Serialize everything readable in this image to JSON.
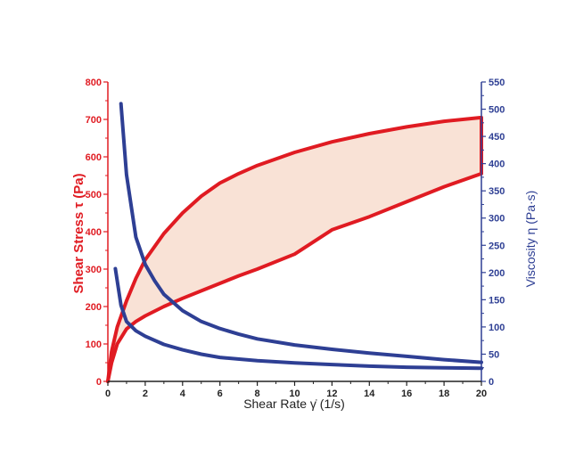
{
  "colors": {
    "stress": "#e01b22",
    "viscosity": "#2e3f94",
    "band_fill": "#f9e2d6",
    "x_axis": "#222222"
  },
  "chart_data": {
    "type": "line",
    "title": "",
    "xlabel": "Shear Rate γ̇ (1/s)",
    "ylabel": "Shear  Stress τ (Pa)",
    "y2label": "Viscosity η (Pa·s)",
    "xlim": [
      0,
      20
    ],
    "ylim": [
      0,
      800
    ],
    "y2lim": [
      0,
      550
    ],
    "x_ticks": [
      "0",
      "2",
      "4",
      "6",
      "8",
      "10",
      "12",
      "14",
      "16",
      "18",
      "20"
    ],
    "y_ticks": [
      "0",
      "100",
      "200",
      "300",
      "400",
      "500",
      "600",
      "700",
      "800"
    ],
    "y2_ticks": [
      "0",
      "50",
      "100",
      "150",
      "200",
      "250",
      "300",
      "350",
      "400",
      "450",
      "500",
      "550"
    ],
    "grid": false,
    "shaded_band": "between the two shear stress curves",
    "series": [
      {
        "axis": "left",
        "color": "#e01b22",
        "x": [
          0,
          0.2,
          0.5,
          1,
          1.5,
          2,
          3,
          4,
          5,
          6,
          7,
          8,
          10,
          12,
          14,
          16,
          18,
          20
        ],
        "values": [
          0,
          80,
          145,
          215,
          275,
          325,
          395,
          450,
          495,
          530,
          555,
          577,
          612,
          640,
          662,
          680,
          695,
          705
        ]
      },
      {
        "axis": "left",
        "color": "#e01b22",
        "x": [
          0,
          0.2,
          0.5,
          1,
          1.5,
          2,
          3,
          4,
          5,
          6,
          7,
          8,
          10,
          12,
          14,
          16,
          18,
          20
        ],
        "values": [
          0,
          50,
          100,
          140,
          160,
          175,
          200,
          222,
          242,
          262,
          282,
          300,
          340,
          405,
          440,
          480,
          520,
          555
        ]
      },
      {
        "axis": "right",
        "color": "#2e3f94",
        "x": [
          0.7,
          1,
          1.5,
          2,
          2.5,
          3,
          4,
          5,
          6,
          7,
          8,
          10,
          12,
          14,
          16,
          18,
          20
        ],
        "values": [
          510,
          380,
          265,
          215,
          185,
          160,
          130,
          110,
          97,
          87,
          78,
          67,
          59,
          52,
          46,
          40,
          35
        ]
      },
      {
        "axis": "right",
        "color": "#2e3f94",
        "x": [
          0.4,
          0.7,
          1,
          1.5,
          2,
          3,
          4,
          5,
          6,
          8,
          10,
          12,
          14,
          16,
          18,
          20
        ],
        "values": [
          207,
          140,
          110,
          93,
          83,
          68,
          58,
          50,
          44,
          38,
          34,
          31,
          28,
          26,
          25,
          24
        ]
      }
    ]
  }
}
